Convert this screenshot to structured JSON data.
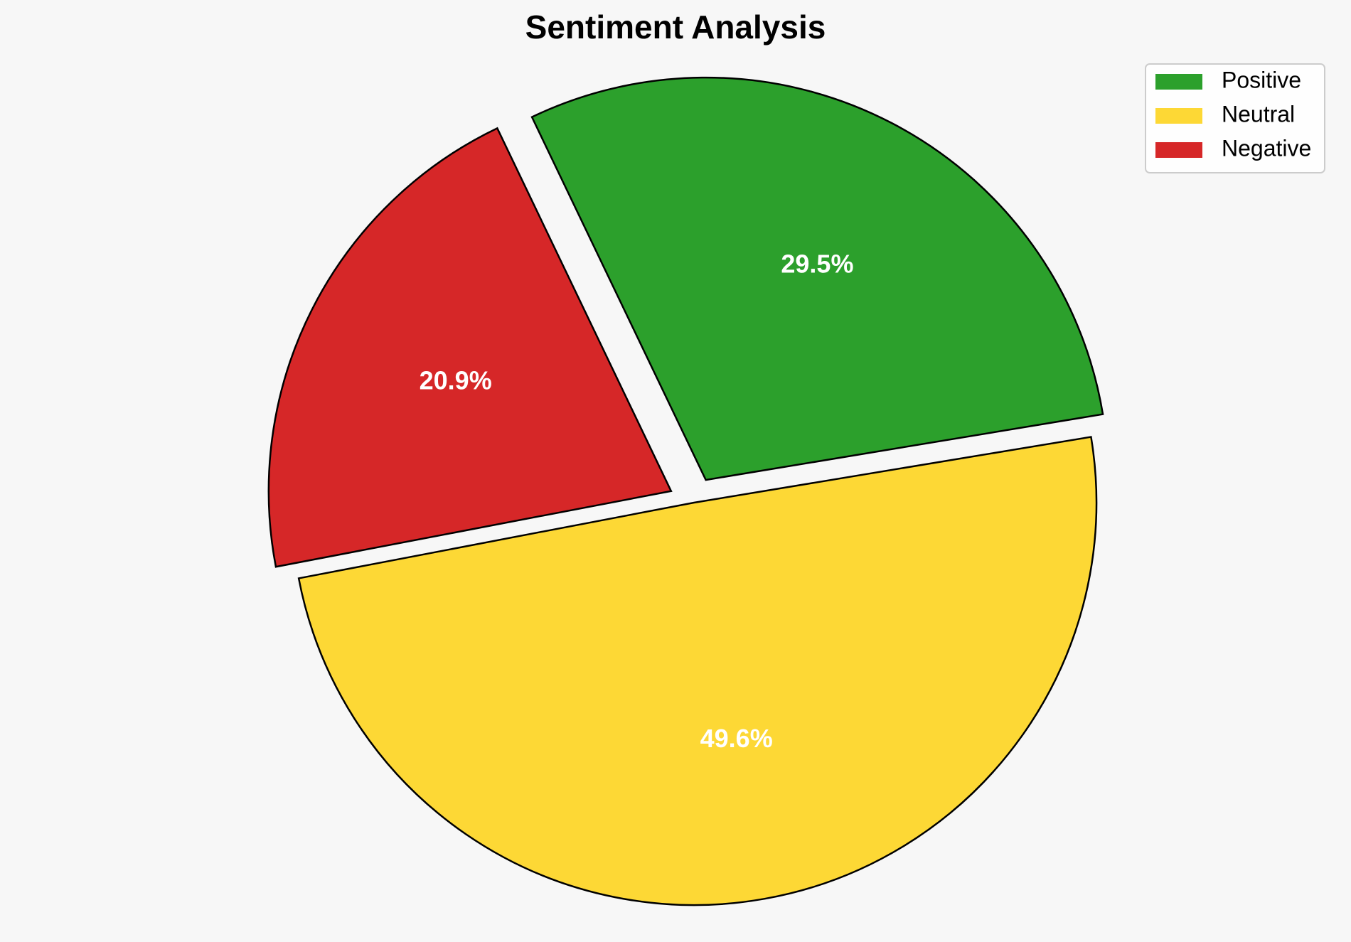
{
  "chart_data": {
    "type": "pie",
    "title": "Sentiment Analysis",
    "categories": [
      "Positive",
      "Neutral",
      "Negative"
    ],
    "values": [
      29.5,
      49.6,
      20.9
    ],
    "labels": [
      "29.5%",
      "49.6%",
      "20.9%"
    ],
    "colors": [
      "#2ca02c",
      "#fdd835",
      "#d62728"
    ],
    "exploded": [
      true,
      false,
      true
    ],
    "legend_position": "top-right"
  }
}
